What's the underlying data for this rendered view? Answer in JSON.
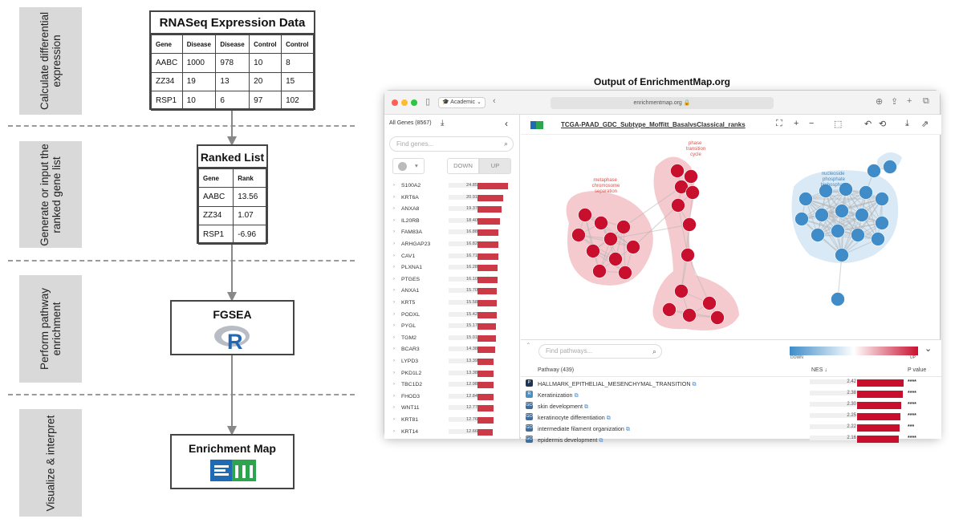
{
  "workflow": {
    "steps": [
      {
        "label": "Calculate differential\nexpression"
      },
      {
        "label": "Generate or input the\nranked gene list"
      },
      {
        "label": "Perform pathway\nenrichment"
      },
      {
        "label": "Visualize & interpret"
      }
    ],
    "rnaseq": {
      "title": "RNASeq Expression Data",
      "headers": [
        "Gene",
        "Disease",
        "Disease",
        "Control",
        "Control"
      ],
      "rows": [
        [
          "AABC",
          "1000",
          "978",
          "10",
          "8"
        ],
        [
          "ZZ34",
          "19",
          "13",
          "20",
          "15"
        ],
        [
          "RSP1",
          "10",
          "6",
          "97",
          "102"
        ]
      ]
    },
    "ranked": {
      "title": "Ranked List",
      "headers": [
        "Gene",
        "Rank"
      ],
      "rows": [
        [
          "AABC",
          "13.56"
        ],
        [
          "ZZ34",
          "1.07"
        ],
        [
          "RSP1",
          "-6.96"
        ]
      ]
    },
    "fgsea": {
      "title": "FGSEA",
      "icon": "r-logo-icon"
    },
    "emap": {
      "title": "Enrichment Map",
      "icon": "em-logo-icon"
    }
  },
  "output_title": "Output of EnrichmentMap.org",
  "browser": {
    "tab_pill": "Academic",
    "address": "enrichmentmap.org",
    "colors": {
      "close": "#ff5f57",
      "minimize": "#febc2e",
      "maximize": "#28c840"
    }
  },
  "gene_panel": {
    "header": "All Genes (8567)",
    "search_placeholder": "Find genes...",
    "toggle_down": "DOWN",
    "toggle_up": "UP",
    "genes": [
      {
        "name": "S100A2",
        "value": "24.85"
      },
      {
        "name": "KRT6A",
        "value": "20.91"
      },
      {
        "name": "ANXA8",
        "value": "19.37"
      },
      {
        "name": "IL20RB",
        "value": "18.40"
      },
      {
        "name": "FAM83A",
        "value": "16.88"
      },
      {
        "name": "ARHGAP23",
        "value": "16.82"
      },
      {
        "name": "CAV1",
        "value": "16.71"
      },
      {
        "name": "PLXNA1",
        "value": "16.28"
      },
      {
        "name": "PTGES",
        "value": "16.10"
      },
      {
        "name": "ANXA1",
        "value": "15.70"
      },
      {
        "name": "KRT5",
        "value": "15.58"
      },
      {
        "name": "PODXL",
        "value": "15.42"
      },
      {
        "name": "PYGL",
        "value": "15.17"
      },
      {
        "name": "TGM2",
        "value": "15.01"
      },
      {
        "name": "BCAR3",
        "value": "14.38"
      },
      {
        "name": "LYPD3",
        "value": "13.39"
      },
      {
        "name": "PKD1L2",
        "value": "13.38"
      },
      {
        "name": "TBC1D2",
        "value": "12.98"
      },
      {
        "name": "FHOD3",
        "value": "12.84"
      },
      {
        "name": "WNT11",
        "value": "12.77"
      },
      {
        "name": "KRT81",
        "value": "12.76"
      },
      {
        "name": "KRT14",
        "value": "12.66"
      }
    ]
  },
  "network": {
    "title": "TCGA-PAAD_GDC_Subtype_Moffitt_BasalvsClassical_ranks",
    "cluster_labels": [
      {
        "text": "phase\ntransition\ncycle",
        "color": "#d9534f"
      },
      {
        "text": "metaphase\nchromosome\nseparation",
        "color": "#d9534f"
      },
      {
        "text": "nucleoside\nphosphate\nbiphosphate",
        "color": "#4a86b8"
      }
    ],
    "up_color": "#c8102e",
    "down_color": "#3f8cc8"
  },
  "pathway_panel": {
    "search_placeholder": "Find pathways...",
    "legend_down": "DOWN",
    "legend_up": "UP",
    "col_pathway": "Pathway (439)",
    "col_nes": "NES ↓",
    "col_pvalue": "P value",
    "rows": [
      {
        "name": "HALLMARK_EPITHELIAL_MESENCHYMAL_TRANSITION",
        "nes": "2.42",
        "p": "****",
        "src": "P",
        "src_color": "#1d3557"
      },
      {
        "name": "Keratinization",
        "nes": "2.38",
        "p": "****",
        "src": "R",
        "src_color": "#4a90c2"
      },
      {
        "name": "skin development",
        "nes": "2.30",
        "p": "****",
        "src": "GO",
        "src_color": "#3d6fa5"
      },
      {
        "name": "keratinocyte differentiation",
        "nes": "2.25",
        "p": "****",
        "src": "GO",
        "src_color": "#3d6fa5"
      },
      {
        "name": "intermediate filament organization",
        "nes": "2.22",
        "p": "***",
        "src": "GO",
        "src_color": "#3d6fa5"
      },
      {
        "name": "epidermis development",
        "nes": "2.16",
        "p": "****",
        "src": "GO",
        "src_color": "#3d6fa5"
      }
    ]
  }
}
